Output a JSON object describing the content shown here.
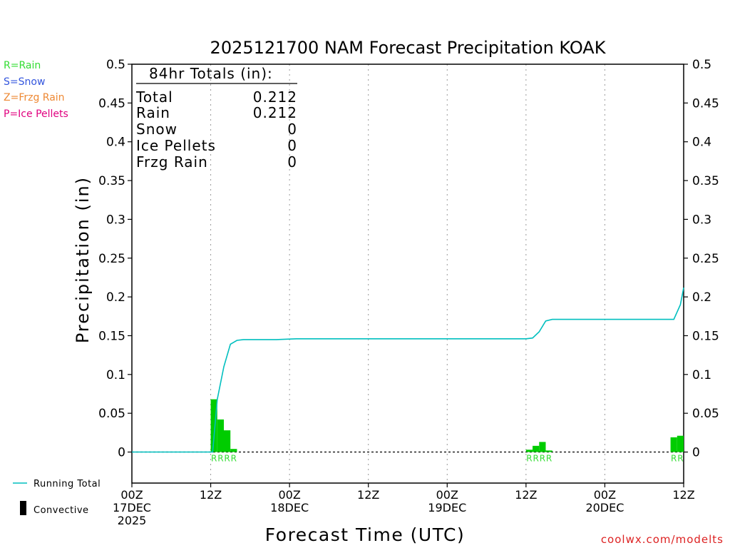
{
  "chart_data": {
    "type": "bar",
    "title": "2025121700 NAM Forecast Precipitation KOAK",
    "ylabel": "Precipitation (in)",
    "xlabel": "Forecast Time (UTC)",
    "ylim": [
      -0.04,
      0.5
    ],
    "xlim_hours": [
      0,
      84
    ],
    "y_ticks": [
      {
        "value": 0,
        "label": "0"
      },
      {
        "value": 0.05,
        "label": "0.05"
      },
      {
        "value": 0.1,
        "label": "0.1"
      },
      {
        "value": 0.15,
        "label": "0.15"
      },
      {
        "value": 0.2,
        "label": "0.2"
      },
      {
        "value": 0.25,
        "label": "0.25"
      },
      {
        "value": 0.3,
        "label": "0.3"
      },
      {
        "value": 0.35,
        "label": "0.35"
      },
      {
        "value": 0.4,
        "label": "0.4"
      },
      {
        "value": 0.45,
        "label": "0.45"
      },
      {
        "value": 0.5,
        "label": "0.5"
      }
    ],
    "x_ticks": [
      {
        "hour": 0,
        "lines": [
          "00Z",
          "17DEC",
          "2025"
        ]
      },
      {
        "hour": 12,
        "lines": [
          "12Z"
        ]
      },
      {
        "hour": 24,
        "lines": [
          "00Z",
          "18DEC"
        ]
      },
      {
        "hour": 36,
        "lines": [
          "12Z"
        ]
      },
      {
        "hour": 48,
        "lines": [
          "00Z",
          "19DEC"
        ]
      },
      {
        "hour": 60,
        "lines": [
          "12Z"
        ]
      },
      {
        "hour": 72,
        "lines": [
          "00Z",
          "20DEC"
        ]
      },
      {
        "hour": 84,
        "lines": [
          "12Z"
        ]
      }
    ],
    "bar_width_hours": 1,
    "bars": [
      {
        "hour": 13,
        "value": 0.068
      },
      {
        "hour": 14,
        "value": 0.042
      },
      {
        "hour": 15,
        "value": 0.028
      },
      {
        "hour": 16,
        "value": 0.004
      },
      {
        "hour": 61,
        "value": 0.003
      },
      {
        "hour": 62,
        "value": 0.008
      },
      {
        "hour": 63,
        "value": 0.013
      },
      {
        "hour": 64,
        "value": 0.002
      },
      {
        "hour": 83,
        "value": 0.019
      },
      {
        "hour": 84,
        "value": 0.021
      }
    ],
    "ptype_markers": [
      {
        "hour": 13,
        "label": "R"
      },
      {
        "hour": 14,
        "label": "R"
      },
      {
        "hour": 15,
        "label": "R"
      },
      {
        "hour": 16,
        "label": "R"
      },
      {
        "hour": 61,
        "label": "R"
      },
      {
        "hour": 62,
        "label": "R"
      },
      {
        "hour": 63,
        "label": "R"
      },
      {
        "hour": 64,
        "label": "R"
      },
      {
        "hour": 83,
        "label": "R"
      },
      {
        "hour": 84,
        "label": "R"
      }
    ],
    "running_total": [
      [
        0,
        0
      ],
      [
        12,
        0
      ],
      [
        12.3,
        0
      ],
      [
        13,
        0.068
      ],
      [
        14,
        0.11
      ],
      [
        15,
        0.139
      ],
      [
        16,
        0.144
      ],
      [
        17,
        0.145
      ],
      [
        22,
        0.145
      ],
      [
        25,
        0.146
      ],
      [
        40,
        0.146
      ],
      [
        60,
        0.146
      ],
      [
        61,
        0.147
      ],
      [
        62,
        0.155
      ],
      [
        63,
        0.169
      ],
      [
        64,
        0.171
      ],
      [
        70,
        0.171
      ],
      [
        82.5,
        0.171
      ],
      [
        83.5,
        0.19
      ],
      [
        84,
        0.212
      ]
    ],
    "colors": {
      "rain_bar": "#00cc00",
      "running_total": "#00bfbf",
      "rain": "#33dd33",
      "snow": "#3355dd",
      "frzg_rain": "#ee8833",
      "ice_pellets": "#e0007f",
      "credit": "#dd2222"
    }
  },
  "totals_box": {
    "heading": "84hr Totals (in):",
    "rows": [
      {
        "label": "Total",
        "value": "0.212"
      },
      {
        "label": "Rain",
        "value": "0.212"
      },
      {
        "label": "Snow",
        "value": "0"
      },
      {
        "label": "Ice Pellets",
        "value": "0"
      },
      {
        "label": "Frzg Rain",
        "value": "0"
      }
    ]
  },
  "ptype_legend": [
    {
      "text": "R=Rain",
      "color": "#33dd33"
    },
    {
      "text": "S=Snow",
      "color": "#3355dd"
    },
    {
      "text": "Z=Frzg Rain",
      "color": "#ee8833"
    },
    {
      "text": "P=Ice Pellets",
      "color": "#e0007f"
    }
  ],
  "legend": {
    "running_total": "Running Total",
    "convective": "Convective"
  },
  "credit": "coolwx.com/modelts"
}
